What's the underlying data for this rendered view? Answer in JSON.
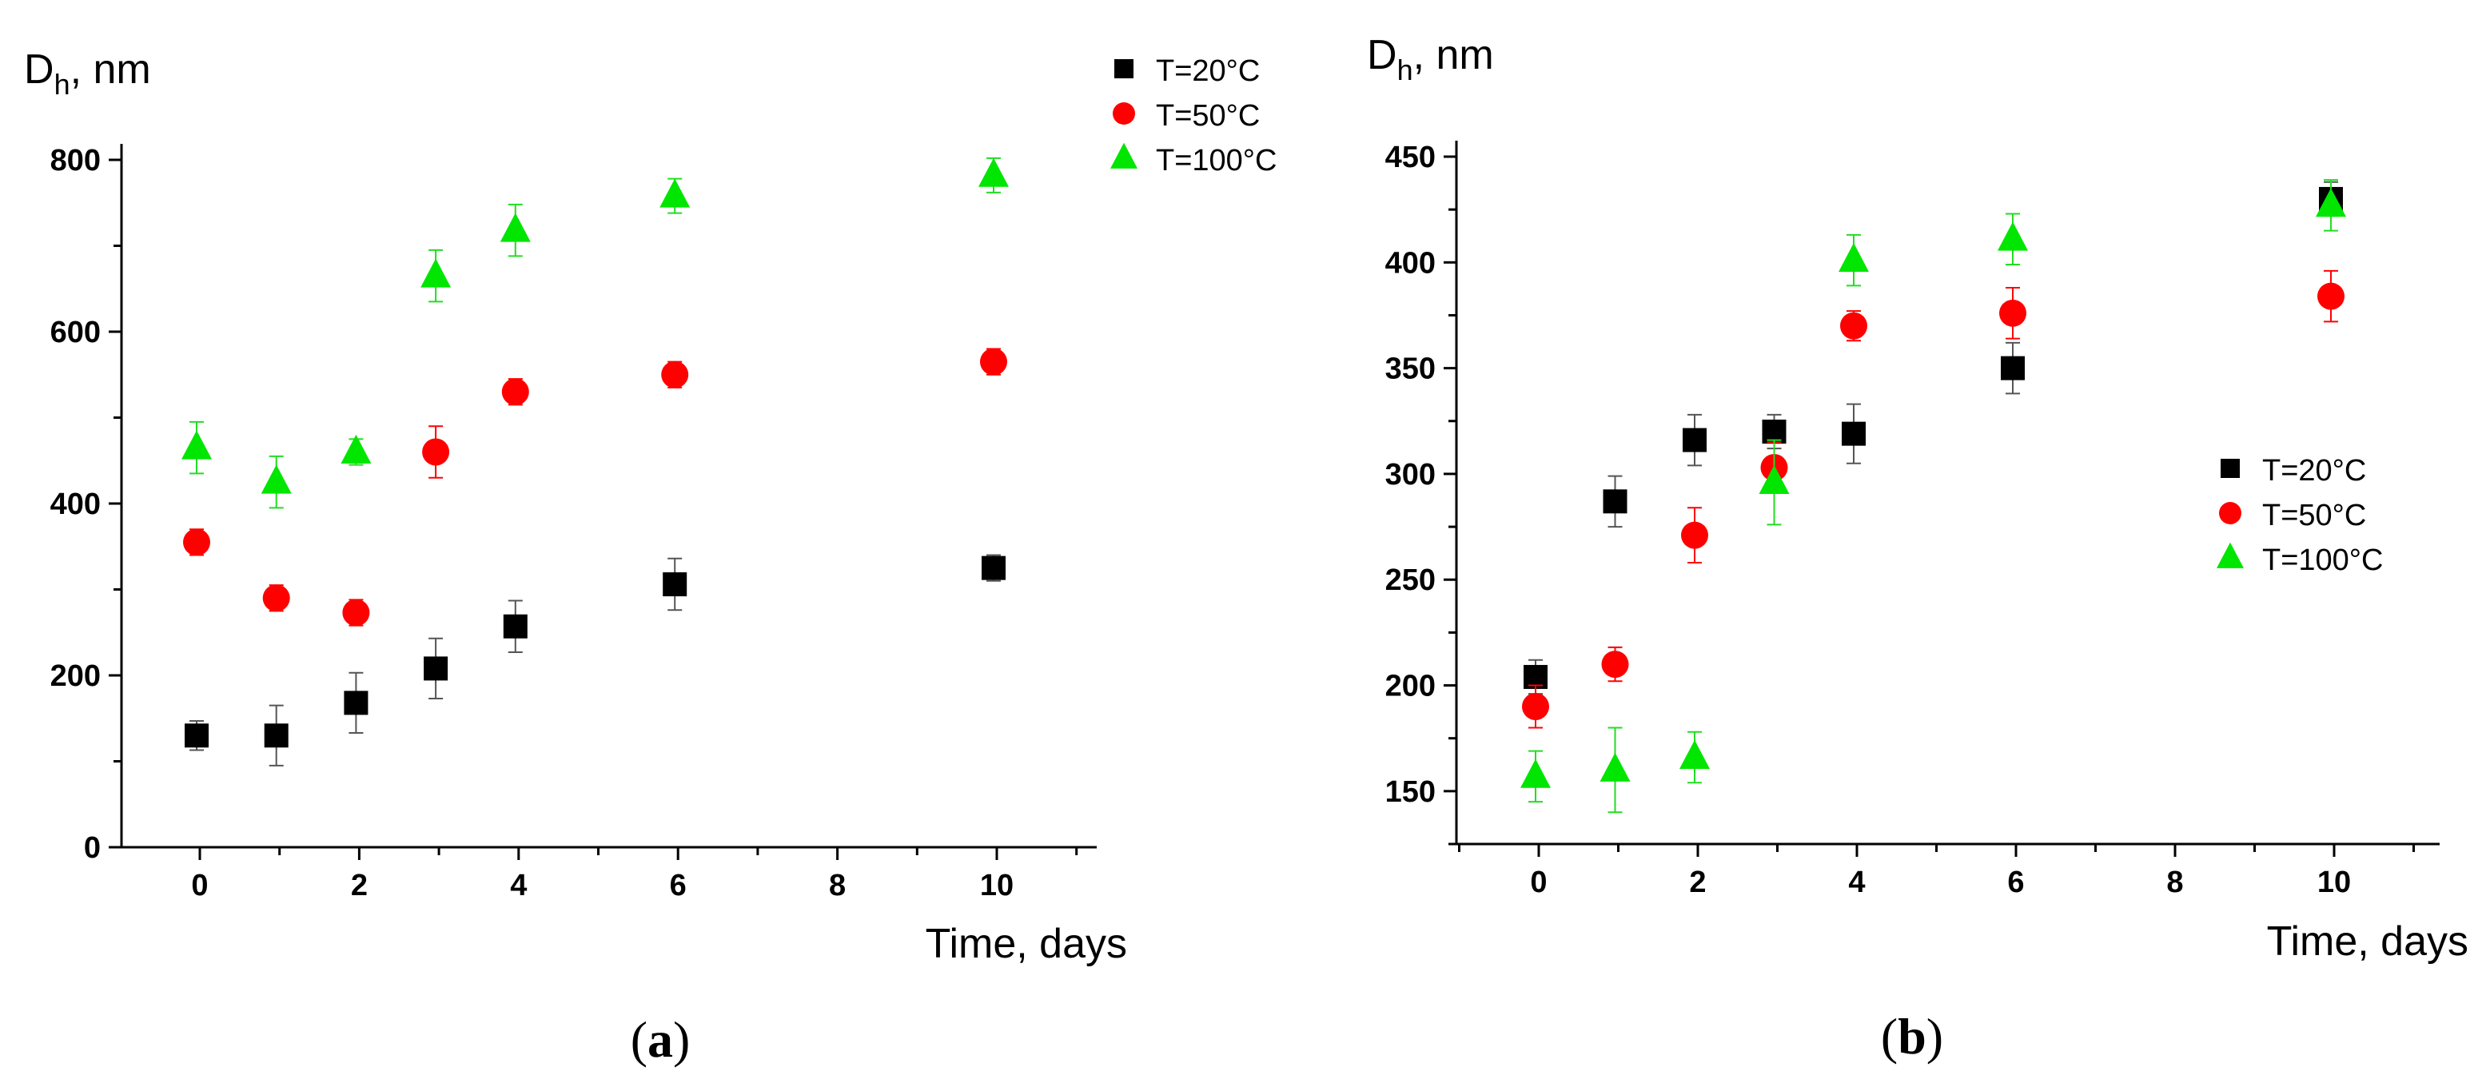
{
  "colors": {
    "T20": "#000000",
    "T50": "#ff0000",
    "T100": "#00e600",
    "err20": "#555555",
    "err50": "#ff0000",
    "err100": "#22dd22"
  },
  "chart_data": [
    {
      "type": "scatter",
      "panel_label": "a",
      "ylabel_main": "D",
      "ylabel_sub": "h",
      "ylabel_unit": ", nm",
      "xlabel": "Time, days",
      "xlim": [
        -1,
        11.3
      ],
      "ylim": [
        0,
        800
      ],
      "xticks": [
        0,
        2,
        4,
        6,
        8,
        10
      ],
      "yticks": [
        0,
        200,
        400,
        600,
        800
      ],
      "legend_position": "top-right",
      "series": [
        {
          "name": "T=20°C",
          "marker": "square",
          "color_key": "T20",
          "err_color_key": "err20",
          "x": [
            0,
            1,
            2,
            3,
            4,
            6,
            10
          ],
          "y": [
            130,
            130,
            168,
            208,
            257,
            306,
            325
          ],
          "err": [
            17,
            35,
            35,
            35,
            30,
            30,
            15
          ]
        },
        {
          "name": "T=50°C",
          "marker": "circle",
          "color_key": "T50",
          "err_color_key": "err50",
          "x": [
            0,
            1,
            2,
            3,
            4,
            6,
            10
          ],
          "y": [
            355,
            290,
            273,
            460,
            530,
            550,
            565
          ],
          "err": [
            15,
            15,
            15,
            30,
            15,
            15,
            15
          ]
        },
        {
          "name": "T=100°C",
          "marker": "triangle",
          "color_key": "T100",
          "err_color_key": "err100",
          "x": [
            0,
            1,
            2,
            3,
            4,
            6,
            10
          ],
          "y": [
            465,
            425,
            460,
            665,
            718,
            758,
            782
          ],
          "err": [
            30,
            30,
            15,
            30,
            30,
            20,
            20
          ]
        }
      ]
    },
    {
      "type": "scatter",
      "panel_label": "b",
      "ylabel_main": "D",
      "ylabel_sub": "h",
      "ylabel_unit": ", nm",
      "xlabel": "Time, days",
      "xlim": [
        -1,
        11.3
      ],
      "ylim": [
        125,
        450
      ],
      "xticks": [
        0,
        2,
        4,
        6,
        8,
        10
      ],
      "yticks": [
        150,
        200,
        250,
        300,
        350,
        400,
        450
      ],
      "legend_position": "middle-right",
      "series": [
        {
          "name": "T=20°C",
          "marker": "square",
          "color_key": "T20",
          "err_color_key": "err20",
          "x": [
            0,
            1,
            2,
            3,
            4,
            6,
            10
          ],
          "y": [
            204,
            287,
            316,
            320,
            319,
            350,
            430
          ],
          "err": [
            8,
            12,
            12,
            8,
            14,
            12,
            8
          ]
        },
        {
          "name": "T=50°C",
          "marker": "circle",
          "color_key": "T50",
          "err_color_key": "err50",
          "x": [
            0,
            1,
            2,
            3,
            4,
            6,
            10
          ],
          "y": [
            190,
            210,
            271,
            303,
            370,
            376,
            384
          ],
          "err": [
            10,
            8,
            13,
            12,
            7,
            12,
            12
          ]
        },
        {
          "name": "T=100°C",
          "marker": "triangle",
          "color_key": "T100",
          "err_color_key": "err100",
          "x": [
            0,
            1,
            2,
            3,
            4,
            6,
            10
          ],
          "y": [
            157,
            160,
            166,
            296,
            401,
            411,
            427
          ],
          "err": [
            12,
            20,
            12,
            20,
            12,
            12,
            12
          ]
        }
      ]
    }
  ]
}
